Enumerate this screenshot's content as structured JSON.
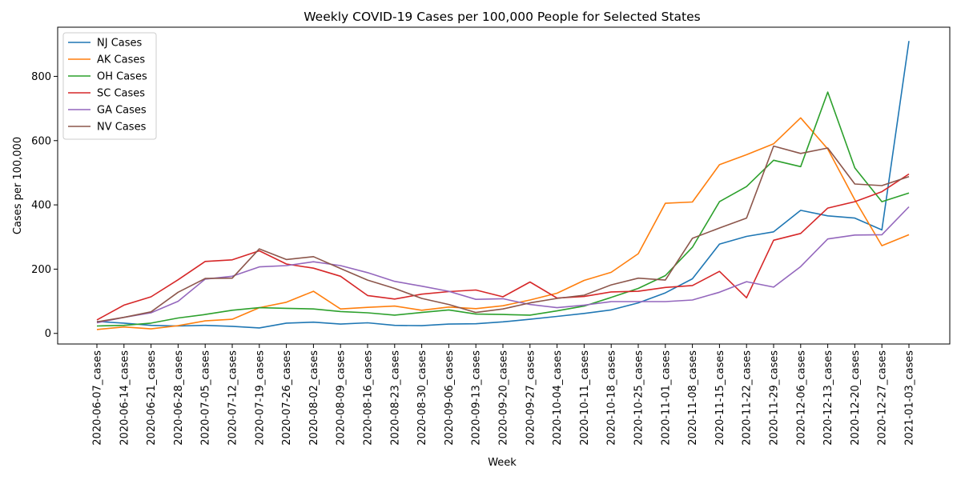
{
  "chart_data": {
    "type": "line",
    "title": "Weekly COVID-19 Cases per 100,000 People for Selected States",
    "xlabel": "Week",
    "ylabel": "Cases per 100,000",
    "ylim": [
      -33,
      953
    ],
    "yticks": [
      0,
      200,
      400,
      600,
      800
    ],
    "grid": false,
    "legend_position": "top-left",
    "categories": [
      "2020-06-07_cases",
      "2020-06-14_cases",
      "2020-06-21_cases",
      "2020-06-28_cases",
      "2020-07-05_cases",
      "2020-07-12_cases",
      "2020-07-19_cases",
      "2020-07-26_cases",
      "2020-08-02_cases",
      "2020-08-09_cases",
      "2020-08-16_cases",
      "2020-08-23_cases",
      "2020-08-30_cases",
      "2020-09-06_cases",
      "2020-09-13_cases",
      "2020-09-20_cases",
      "2020-09-27_cases",
      "2020-10-04_cases",
      "2020-10-11_cases",
      "2020-10-18_cases",
      "2020-10-25_cases",
      "2020-11-01_cases",
      "2020-11-08_cases",
      "2020-11-15_cases",
      "2020-11-22_cases",
      "2020-11-29_cases",
      "2020-12-06_cases",
      "2020-12-13_cases",
      "2020-12-20_cases",
      "2020-12-27_cases",
      "2021-01-03_cases"
    ],
    "series": [
      {
        "name": "NJ Cases",
        "color": "#1f77b4",
        "values": [
          37,
          32,
          25,
          23,
          25,
          22,
          17,
          32,
          35,
          29,
          33,
          25,
          24,
          29,
          30,
          36,
          44,
          53,
          62,
          73,
          95,
          126,
          170,
          278,
          302,
          316,
          383,
          366,
          359,
          322,
          910
        ]
      },
      {
        "name": "AK Cases",
        "color": "#ff7f0e",
        "values": [
          12,
          20,
          14,
          24,
          39,
          44,
          80,
          97,
          131,
          76,
          81,
          85,
          72,
          82,
          77,
          86,
          104,
          125,
          165,
          190,
          248,
          405,
          409,
          525,
          556,
          590,
          671,
          574,
          416,
          273,
          307
        ]
      },
      {
        "name": "OH Cases",
        "color": "#2ca02c",
        "values": [
          23,
          25,
          32,
          48,
          59,
          72,
          80,
          78,
          76,
          68,
          64,
          57,
          65,
          73,
          60,
          59,
          57,
          70,
          85,
          112,
          140,
          180,
          268,
          410,
          457,
          539,
          519,
          751,
          515,
          410,
          437
        ]
      },
      {
        "name": "SC Cases",
        "color": "#d62728",
        "values": [
          42,
          88,
          114,
          167,
          224,
          229,
          257,
          216,
          203,
          178,
          118,
          107,
          122,
          130,
          135,
          114,
          160,
          110,
          115,
          129,
          131,
          143,
          149,
          193,
          111,
          290,
          311,
          390,
          410,
          441,
          496
        ]
      },
      {
        "name": "GA Cases",
        "color": "#9467bd",
        "values": [
          33,
          50,
          64,
          100,
          169,
          178,
          207,
          211,
          223,
          211,
          189,
          162,
          147,
          131,
          106,
          108,
          90,
          80,
          88,
          99,
          99,
          99,
          104,
          128,
          161,
          144,
          208,
          294,
          306,
          307,
          394
        ]
      },
      {
        "name": "NV Cases",
        "color": "#8c564b",
        "values": [
          36,
          50,
          67,
          128,
          171,
          172,
          263,
          230,
          239,
          202,
          166,
          140,
          109,
          90,
          65,
          76,
          95,
          109,
          119,
          151,
          172,
          166,
          296,
          328,
          359,
          583,
          560,
          577,
          465,
          460,
          488
        ]
      }
    ]
  }
}
